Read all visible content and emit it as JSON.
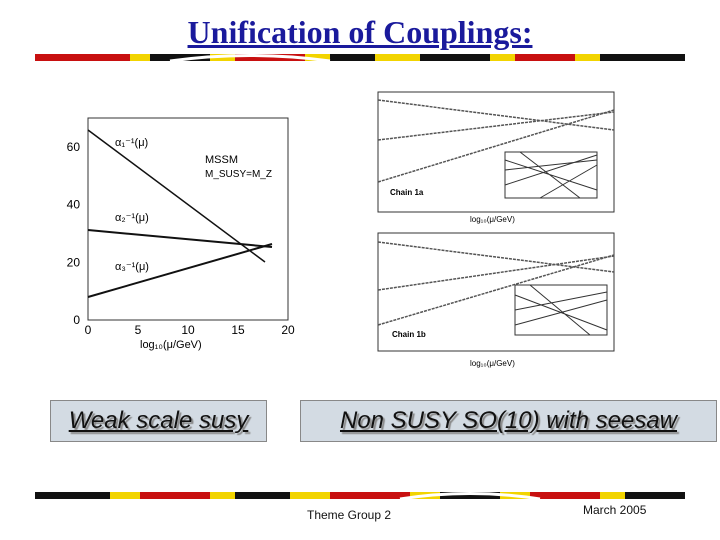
{
  "header": {
    "title": "Unification of Couplings:"
  },
  "left_plot": {
    "y_ticks": [
      "60",
      "40",
      "20",
      "0"
    ],
    "x_ticks": [
      "0",
      "5",
      "10",
      "15",
      "20"
    ],
    "curve_labels": [
      "α₁⁻¹(μ)",
      "α₂⁻¹(μ)",
      "α₃⁻¹(μ)"
    ],
    "model": "MSSM",
    "susy_scale": "M_SUSY=M_Z",
    "x_label": "log₁₀(μ/GeV)"
  },
  "right_plots": [
    {
      "label": "Chain 1a",
      "x_label": "log₁₀(μ/GeV)"
    },
    {
      "label": "Chain 1b",
      "x_label": "log₁₀(μ/GeV)"
    }
  ],
  "boxes": [
    "Weak scale susy",
    "Non SUSY SO(10) with seesaw"
  ],
  "footer": {
    "group": "Theme Group 2",
    "date": "March 2005"
  }
}
